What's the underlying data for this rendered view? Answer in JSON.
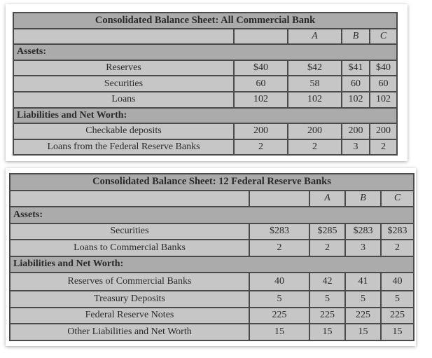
{
  "tables": [
    {
      "title": "Consolidated Balance Sheet: All Commercial Bank",
      "columns": [
        "",
        "",
        "A",
        "B",
        "C"
      ],
      "sections": [
        {
          "label": "Assets:",
          "rows": [
            {
              "label": "Reserves",
              "values": [
                "$40",
                "$42",
                "$41",
                "$40"
              ]
            },
            {
              "label": "Securities",
              "values": [
                "60",
                "58",
                "60",
                "60"
              ]
            },
            {
              "label": "Loans",
              "values": [
                "102",
                "102",
                "102",
                "102"
              ]
            }
          ]
        },
        {
          "label": "Liabilities and Net Worth:",
          "rows": [
            {
              "label": "Checkable deposits",
              "values": [
                "200",
                "200",
                "200",
                "200"
              ]
            },
            {
              "label": "Loans from the Federal Reserve Banks",
              "values": [
                "2",
                "2",
                "3",
                "2"
              ]
            }
          ]
        }
      ]
    },
    {
      "title": "Consolidated Balance Sheet: 12 Federal Reserve Banks",
      "columns": [
        "",
        "",
        "A",
        "B",
        "C"
      ],
      "sections": [
        {
          "label": "Assets:",
          "rows": [
            {
              "label": "Securities",
              "values": [
                "$283",
                "$285",
                "$283",
                "$283"
              ]
            },
            {
              "label": "Loans to Commercial Banks",
              "values": [
                "2",
                "2",
                "3",
                "2"
              ]
            }
          ]
        },
        {
          "label": "Liabilities and Net Worth:",
          "rows": [
            {
              "label": "Reserves of Commercial Banks",
              "values": [
                "40",
                "42",
                "41",
                "40"
              ]
            },
            {
              "label": "Treasury Deposits",
              "values": [
                "5",
                "5",
                "5",
                "5"
              ]
            },
            {
              "label": "Federal Reserve Notes",
              "values": [
                "225",
                "225",
                "225",
                "225"
              ]
            },
            {
              "label": "Other Liabilities and Net Worth",
              "values": [
                "15",
                "15",
                "15",
                "15"
              ]
            }
          ]
        }
      ]
    }
  ]
}
